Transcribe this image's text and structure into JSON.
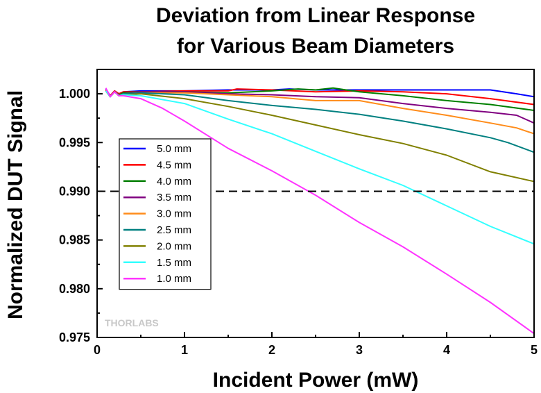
{
  "chart_data": {
    "type": "line",
    "title": [
      "Deviation from Linear Response",
      "for Various Beam Diameters"
    ],
    "xlabel": "Incident Power (mW)",
    "ylabel": "Normalized DUT Signal",
    "xlim": [
      0,
      5
    ],
    "ylim": [
      0.975,
      1.0025
    ],
    "x_ticks": [
      0,
      1,
      2,
      3,
      4,
      5
    ],
    "x_tick_labels": [
      "0",
      "1",
      "2",
      "3",
      "4",
      "5"
    ],
    "y_ticks": [
      0.975,
      0.98,
      0.985,
      0.99,
      0.995,
      1.0
    ],
    "y_tick_labels": [
      "0.975",
      "0.980",
      "0.985",
      "0.990",
      "0.995",
      "1.000"
    ],
    "reference_line": {
      "y": 0.99,
      "style": "dashed",
      "color": "#000000"
    },
    "grid": false,
    "legend_position": "left",
    "watermark": "THORLABS",
    "series": [
      {
        "name": "5.0 mm",
        "color": "#0000ff",
        "x": [
          0.1,
          0.15,
          0.2,
          0.25,
          0.3,
          0.5,
          1.0,
          1.5,
          2.0,
          2.2,
          2.5,
          3.0,
          3.5,
          4.0,
          4.5,
          4.8,
          5.0
        ],
        "y": [
          1.0005,
          0.9998,
          1.0003,
          1.0,
          1.0002,
          1.0003,
          1.0003,
          1.0004,
          1.0004,
          1.0005,
          1.0004,
          1.0004,
          1.0004,
          1.0004,
          1.0004,
          1.0,
          0.9997
        ]
      },
      {
        "name": "4.5 mm",
        "color": "#ff0000",
        "x": [
          0.1,
          0.15,
          0.2,
          0.25,
          0.3,
          0.5,
          1.0,
          1.5,
          1.6,
          2.0,
          2.5,
          3.0,
          3.5,
          4.0,
          4.5,
          5.0
        ],
        "y": [
          1.0004,
          0.9998,
          1.0003,
          1.0,
          1.0002,
          1.0002,
          1.0003,
          1.0003,
          1.0005,
          1.0004,
          1.0002,
          1.0003,
          1.0002,
          1.0,
          0.9995,
          0.9989
        ]
      },
      {
        "name": "4.0 mm",
        "color": "#008000",
        "x": [
          0.1,
          0.15,
          0.2,
          0.25,
          0.3,
          0.5,
          1.0,
          1.5,
          2.0,
          2.3,
          2.5,
          2.7,
          3.0,
          3.5,
          4.0,
          4.5,
          5.0
        ],
        "y": [
          1.0003,
          0.9997,
          1.0002,
          0.9999,
          1.0001,
          1.0002,
          1.0002,
          1.0001,
          1.0003,
          1.0005,
          1.0004,
          1.0006,
          1.0002,
          0.9998,
          0.9993,
          0.9989,
          0.9983
        ]
      },
      {
        "name": "3.5 mm",
        "color": "#800080",
        "x": [
          0.1,
          0.15,
          0.2,
          0.25,
          0.3,
          0.5,
          1.0,
          1.5,
          2.0,
          2.5,
          3.0,
          3.5,
          4.0,
          4.5,
          4.8,
          5.0
        ],
        "y": [
          1.0003,
          0.9997,
          1.0002,
          0.9998,
          1.0,
          1.0002,
          1.0002,
          1.0,
          0.9999,
          0.9997,
          0.9996,
          0.999,
          0.9985,
          0.9981,
          0.9978,
          0.997
        ]
      },
      {
        "name": "3.0 mm",
        "color": "#ff8c1a",
        "x": [
          0.1,
          0.15,
          0.2,
          0.25,
          0.3,
          0.5,
          1.0,
          1.5,
          2.0,
          2.5,
          3.0,
          3.5,
          4.0,
          4.5,
          4.8,
          5.0
        ],
        "y": [
          1.0003,
          0.9997,
          1.0002,
          0.9998,
          1.0,
          1.0001,
          1.0001,
          0.9999,
          0.9997,
          0.9993,
          0.9993,
          0.9985,
          0.9978,
          0.997,
          0.9965,
          0.9959
        ]
      },
      {
        "name": "2.5 mm",
        "color": "#008080",
        "x": [
          0.1,
          0.15,
          0.2,
          0.25,
          0.3,
          0.5,
          1.0,
          1.5,
          2.0,
          2.5,
          3.0,
          3.5,
          4.0,
          4.5,
          4.7,
          5.0
        ],
        "y": [
          1.0003,
          0.9997,
          1.0002,
          0.9998,
          1.0,
          1.0001,
          0.9999,
          0.9993,
          0.9988,
          0.9984,
          0.9979,
          0.9972,
          0.9964,
          0.9955,
          0.995,
          0.994
        ]
      },
      {
        "name": "2.0 mm",
        "color": "#808000",
        "x": [
          0.1,
          0.15,
          0.2,
          0.25,
          0.3,
          0.5,
          1.0,
          1.5,
          2.0,
          2.5,
          3.0,
          3.5,
          4.0,
          4.5,
          5.0
        ],
        "y": [
          1.0003,
          0.9997,
          1.0002,
          0.9998,
          0.9999,
          1.0,
          0.9995,
          0.9987,
          0.9978,
          0.9968,
          0.9958,
          0.9949,
          0.9937,
          0.992,
          0.991
        ]
      },
      {
        "name": "1.5 mm",
        "color": "#33ffff",
        "x": [
          0.1,
          0.15,
          0.2,
          0.25,
          0.3,
          0.5,
          1.0,
          1.5,
          2.0,
          2.5,
          3.0,
          3.5,
          4.0,
          4.5,
          5.0
        ],
        "y": [
          1.0003,
          0.9997,
          1.0002,
          0.9998,
          0.9999,
          0.9998,
          0.999,
          0.9974,
          0.9959,
          0.9941,
          0.9923,
          0.9906,
          0.9885,
          0.9864,
          0.9846
        ]
      },
      {
        "name": "1.0 mm",
        "color": "#ff33ff",
        "x": [
          0.1,
          0.15,
          0.2,
          0.25,
          0.3,
          0.5,
          0.75,
          1.0,
          1.5,
          2.0,
          2.5,
          3.0,
          3.5,
          4.0,
          4.5,
          5.0
        ],
        "y": [
          1.0006,
          0.9997,
          1.0002,
          0.9998,
          0.9998,
          0.9995,
          0.9985,
          0.9972,
          0.9944,
          0.9921,
          0.9896,
          0.9868,
          0.9843,
          0.9815,
          0.9786,
          0.9754
        ]
      }
    ]
  }
}
